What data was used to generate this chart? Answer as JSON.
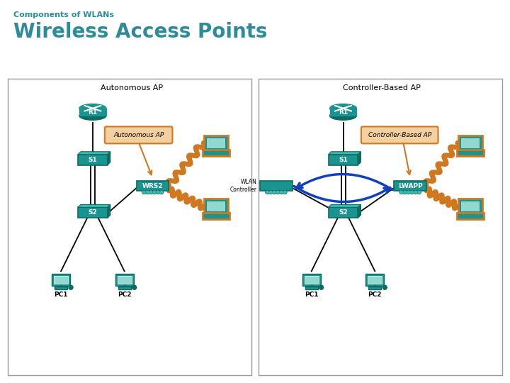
{
  "title_small": "Components of WLANs",
  "title_large": "Wireless Access Points",
  "title_color": "#2E8B9A",
  "bg_color": "#FFFFFF",
  "teal": "#1A9490",
  "teal_dark": "#0D6B60",
  "teal_light": "#40B8B0",
  "orange": "#D07820",
  "orange_light": "#F2D0A0",
  "blue_arrow": "#1040C0",
  "left_panel": {
    "title": "Autonomous AP",
    "r1_label": "R1",
    "s1_label": "S1",
    "s2_label": "S2",
    "ap_label": "WRS2",
    "callout": "Autonomous AP",
    "pc1": "PC1",
    "pc2": "PC2"
  },
  "right_panel": {
    "title": "Controller-Based AP",
    "r1_label": "R1",
    "s1_label": "S1",
    "s2_label": "S2",
    "ap_label": "LWAPP",
    "wlan_label": "WLAN\nController",
    "callout": "Controller-Based AP",
    "pc1": "PC1",
    "pc2": "PC2"
  }
}
